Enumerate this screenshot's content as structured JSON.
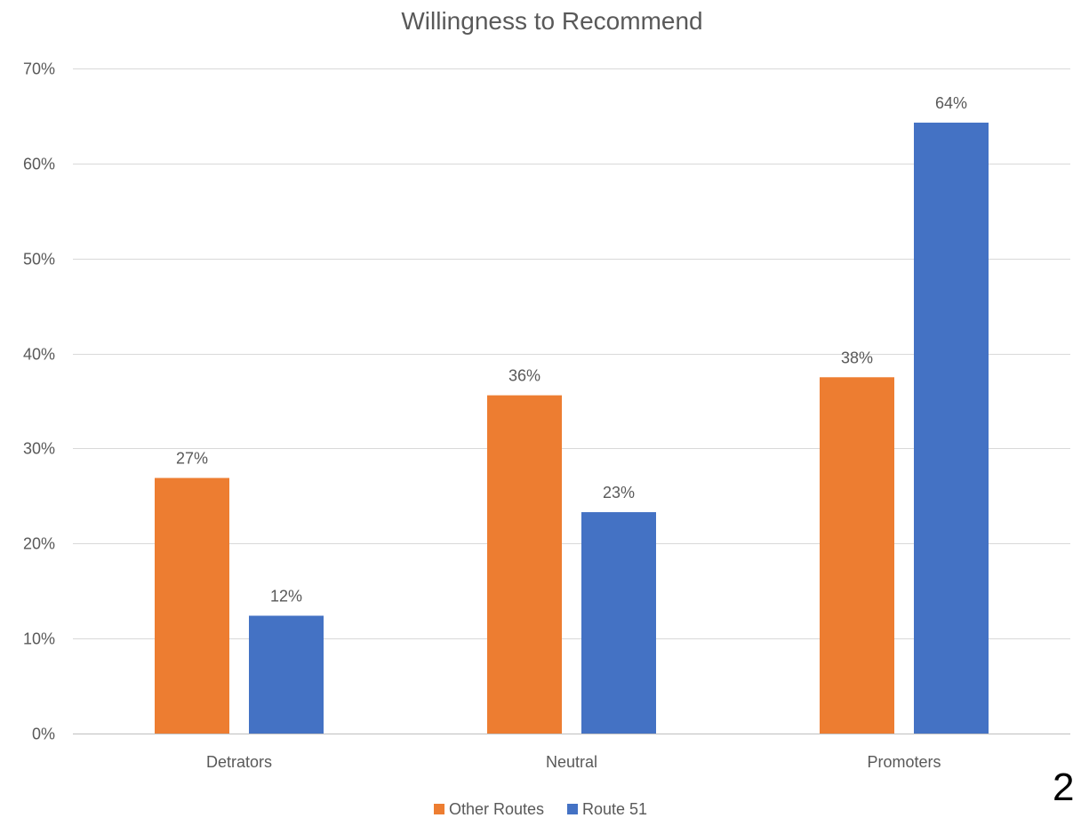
{
  "page": {
    "number": "2"
  },
  "colors": {
    "other_routes": "#ED7D31",
    "route_51": "#4472C4",
    "grid": "#D9D9D9",
    "text": "#595959"
  },
  "chart_data": {
    "type": "bar",
    "title": "Willingness to Recommend",
    "categories": [
      "Detrators",
      "Neutral",
      "Promoters"
    ],
    "series": [
      {
        "name": "Other Routes",
        "values": [
          0.269,
          0.356,
          0.375
        ],
        "labels": [
          "27%",
          "36%",
          "38%"
        ],
        "color": "#ED7D31"
      },
      {
        "name": "Route 51",
        "values": [
          0.124,
          0.233,
          0.643
        ],
        "labels": [
          "12%",
          "23%",
          "64%"
        ],
        "color": "#4472C4"
      }
    ],
    "yticks": [
      0,
      0.1,
      0.2,
      0.3,
      0.4,
      0.5,
      0.6,
      0.7
    ],
    "ytick_labels": [
      "0%",
      "10%",
      "20%",
      "30%",
      "40%",
      "50%",
      "60%",
      "70%"
    ],
    "ylim": [
      0,
      0.7
    ],
    "grid": true,
    "legend": "bottom"
  }
}
